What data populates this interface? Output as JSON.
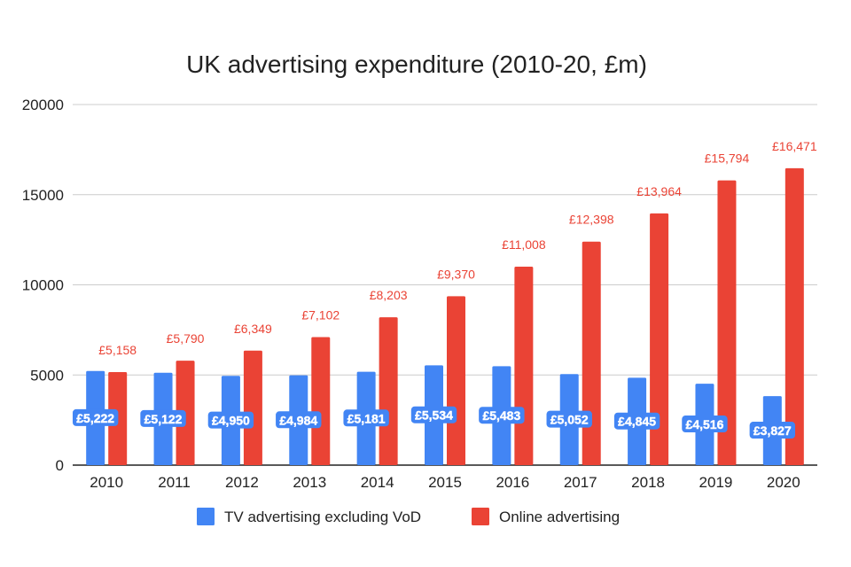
{
  "chart_data": {
    "type": "bar",
    "title": "UK advertising expenditure (2010-20, £m)",
    "xlabel": "",
    "ylabel": "",
    "ylim": [
      0,
      20000
    ],
    "yticks": [
      "0",
      "5000",
      "10000",
      "15000",
      "20000"
    ],
    "grid": true,
    "legend_position": "bottom",
    "categories": [
      "2010",
      "2011",
      "2012",
      "2013",
      "2014",
      "2015",
      "2016",
      "2017",
      "2018",
      "2019",
      "2020"
    ],
    "series": [
      {
        "name": "TV advertising excluding VoD",
        "color": "#4285f4",
        "values": [
          5222,
          5122,
          4950,
          4984,
          5181,
          5534,
          5483,
          5052,
          4845,
          4516,
          3827
        ],
        "labels": [
          "£5,222",
          "£5,122",
          "£4,950",
          "£4,984",
          "£5,181",
          "£5,534",
          "£5,483",
          "£5,052",
          "£4,845",
          "£4,516",
          "£3,827"
        ]
      },
      {
        "name": "Online advertising",
        "color": "#ea4335",
        "values": [
          5158,
          5790,
          6349,
          7102,
          8203,
          9370,
          11008,
          12398,
          13964,
          15794,
          16471
        ],
        "labels": [
          "£5,158",
          "£5,790",
          "£6,349",
          "£7,102",
          "£8,203",
          "£9,370",
          "£11,008",
          "£12,398",
          "£13,964",
          "£15,794",
          "£16,471"
        ]
      }
    ]
  },
  "colors": {
    "grid": "#cccccc",
    "axis": "#222222",
    "text": "#222222"
  }
}
